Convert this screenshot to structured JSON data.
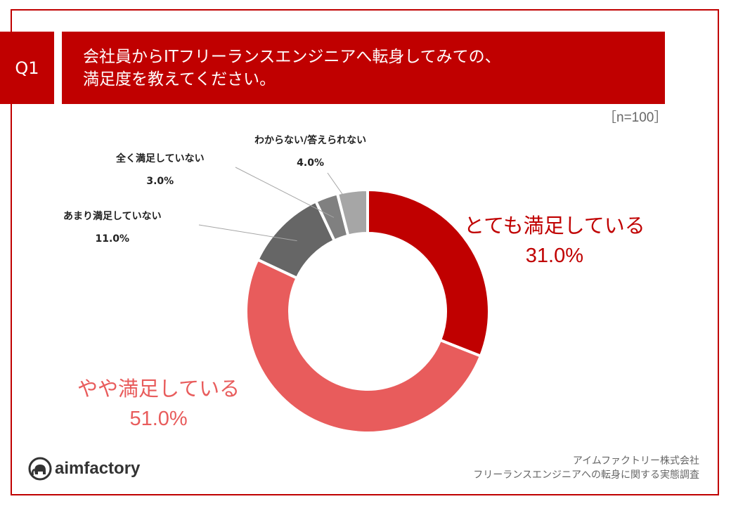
{
  "header": {
    "q_label": "Q1",
    "title_line1": "会社員からITフリーランスエンジニアへ転身してみての、",
    "title_line2": "満足度を教えてください。",
    "sample": "［n=100］"
  },
  "chart_data": {
    "type": "pie",
    "donut": true,
    "slices": [
      {
        "label": "とても満足している",
        "value": 31.0,
        "value_label": "31.0%",
        "color": "#c00000"
      },
      {
        "label": "やや満足している",
        "value": 51.0,
        "value_label": "51.0%",
        "color": "#e85c5c"
      },
      {
        "label": "あまり満足していない",
        "value": 11.0,
        "value_label": "11.0%",
        "color": "#666666"
      },
      {
        "label": "全く満足していない",
        "value": 3.0,
        "value_label": "3.0%",
        "color": "#808080"
      },
      {
        "label": "わからない/答えられない",
        "value": 4.0,
        "value_label": "4.0%",
        "color": "#a6a6a6"
      }
    ]
  },
  "footer": {
    "company": "アイムファクトリー株式会社",
    "survey": "フリーランスエンジニアへの転身に関する実態調査",
    "logo_text": "aimfactory"
  }
}
